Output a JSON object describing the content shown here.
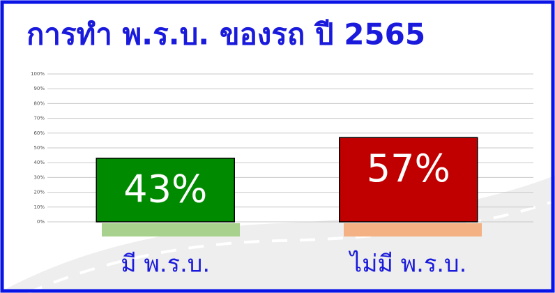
{
  "chart_data": {
    "type": "bar",
    "title": "การทำ พ.ร.บ. ของรถ ปี 2565",
    "categories": [
      "มี พ.ร.บ.",
      "ไม่มี พ.ร.บ."
    ],
    "values": [
      43,
      57
    ],
    "value_labels": [
      "43%",
      "57%"
    ],
    "colors": [
      "#008a00",
      "#c00000"
    ],
    "ylim": [
      0,
      100
    ],
    "yticks": [
      {
        "value": 0,
        "label": "0%"
      },
      {
        "value": 10,
        "label": "10%"
      },
      {
        "value": 20,
        "label": "20%"
      },
      {
        "value": 30,
        "label": "30%"
      },
      {
        "value": 40,
        "label": "40%"
      },
      {
        "value": 50,
        "label": "50%"
      },
      {
        "value": 60,
        "label": "60%"
      },
      {
        "value": 70,
        "label": "70%"
      },
      {
        "value": 80,
        "label": "80%"
      },
      {
        "value": 90,
        "label": "90%"
      },
      {
        "value": 100,
        "label": "100%"
      }
    ],
    "grid": true
  }
}
